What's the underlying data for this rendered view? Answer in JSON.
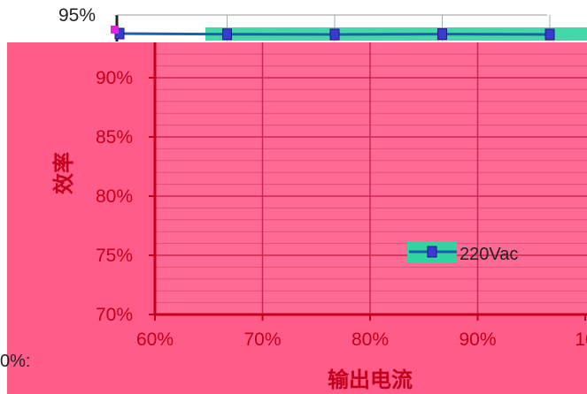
{
  "chart_data": {
    "type": "line",
    "title": "",
    "xlabel": "输出电流",
    "ylabel": "效率",
    "x_ticks": [
      "60%",
      "70%",
      "80%",
      "90%",
      "10"
    ],
    "y_ticks": [
      "70%",
      "75%",
      "80%",
      "85%",
      "90%",
      "95%"
    ],
    "xlim": [
      60,
      100
    ],
    "ylim": [
      70,
      95
    ],
    "grid": true,
    "legend_position": "center-right",
    "series": [
      {
        "name": "220Vac",
        "color": "#1f5fa8",
        "x": [
          60,
          70,
          80,
          90,
          100
        ],
        "y": [
          94.6,
          94.2,
          94.1,
          94.3,
          94.1
        ]
      }
    ]
  },
  "stray_text": "0%:",
  "colors": {
    "plot_background": "#ff5c8a",
    "axis": "#c4001a",
    "grid": "#d2355f",
    "line": "#1f5fa8",
    "marker_fill": "#3a3ad0"
  }
}
